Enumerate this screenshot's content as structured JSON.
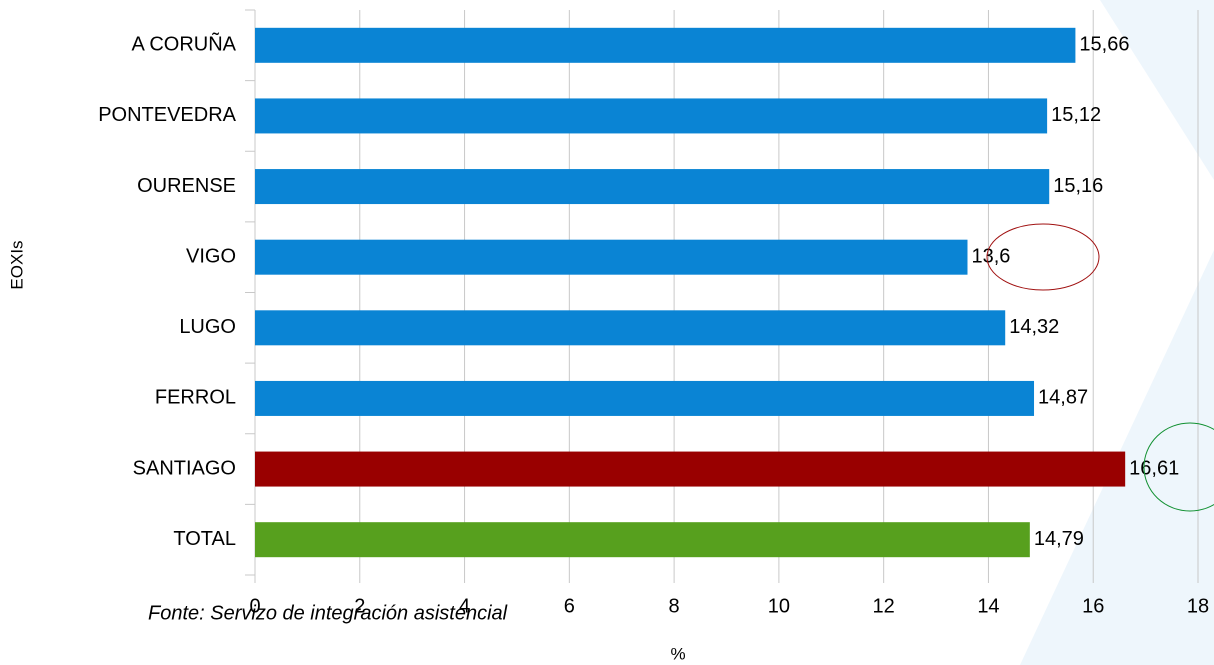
{
  "chart_data": {
    "type": "bar",
    "orientation": "horizontal",
    "categories": [
      "A CORUÑA",
      "PONTEVEDRA",
      "OURENSE",
      "VIGO",
      "LUGO",
      "FERROL",
      "SANTIAGO",
      "TOTAL"
    ],
    "values": [
      15.66,
      15.12,
      15.16,
      13.6,
      14.32,
      14.87,
      16.61,
      14.79
    ],
    "value_labels": [
      "15,66",
      "15,12",
      "15,16",
      "13,6",
      "14,32",
      "14,87",
      "16,61",
      "14,79"
    ],
    "colors": [
      "#0a84d4",
      "#0a84d4",
      "#0a84d4",
      "#0a84d4",
      "#0a84d4",
      "#0a84d4",
      "#990000",
      "#57a01e"
    ],
    "xlim": [
      0,
      18
    ],
    "xticks": [
      0,
      2,
      4,
      6,
      8,
      10,
      12,
      14,
      16,
      18
    ],
    "grid": true,
    "xlabel": "%",
    "ylabel": "EOXIs",
    "source": "Fonte: Servizo de integración asistencial"
  }
}
